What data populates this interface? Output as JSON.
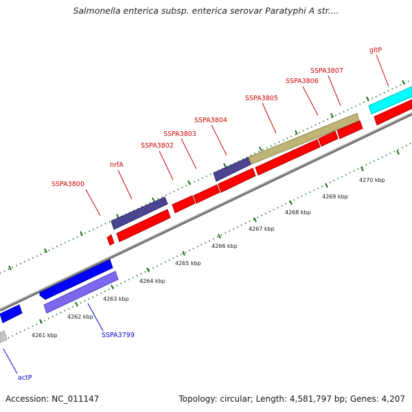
{
  "title": "Salmonella enterica subsp. enterica serovar Paratyphi A str....",
  "footer": {
    "accession": "Accession: NC_011147",
    "summary": "Topology: circular; Length: 4,581,797 bp; Genes: 4,207"
  },
  "colors": {
    "red": "#ff0000",
    "navy": "#4b4591",
    "olive": "#bdb476",
    "cyan": "#00ffff",
    "blue": "#0000ff",
    "lavender": "#7b68ee",
    "gray": "#c8c8c8",
    "label_red": "#cc0000",
    "label_blue": "#0000cc",
    "tick_green": "#226622"
  },
  "gene_labels": [
    {
      "text": "SSPA3800",
      "color": "label_red"
    },
    {
      "text": "nrfA",
      "color": "label_red"
    },
    {
      "text": "SSPA3802",
      "color": "label_red"
    },
    {
      "text": "SSPA3803",
      "color": "label_red"
    },
    {
      "text": "SSPA3804",
      "color": "label_red"
    },
    {
      "text": "SSPA3805",
      "color": "label_red"
    },
    {
      "text": "SSPA3806",
      "color": "label_red"
    },
    {
      "text": "SSPA3807",
      "color": "label_red"
    },
    {
      "text": "gltP",
      "color": "label_red"
    },
    {
      "text": "SSPA3799",
      "color": "label_blue"
    },
    {
      "text": "actP",
      "color": "label_blue"
    }
  ],
  "scale_labels": [
    "4261 kbp",
    "4262 kbp",
    "4263 kbp",
    "4264 kbp",
    "4265 kbp",
    "4266 kbp",
    "4267 kbp",
    "4268 kbp",
    "4269 kbp",
    "4270 kbp"
  ]
}
